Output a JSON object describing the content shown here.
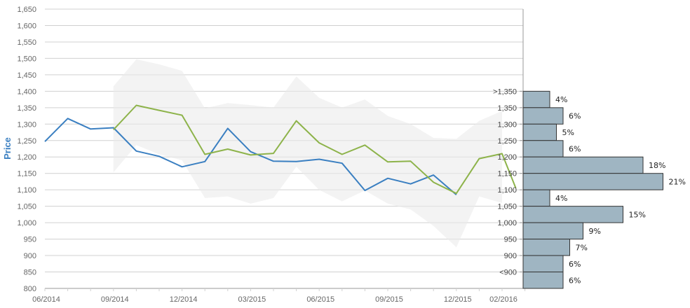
{
  "chart_data": {
    "type": "line",
    "ylabel": "Price",
    "ylim": [
      800,
      1650
    ],
    "y_ticks": [
      "800",
      "850",
      "900",
      "950",
      "1,000",
      "1,050",
      "1,100",
      "1,150",
      "1,200",
      "1,250",
      "1,300",
      "1,350",
      "1,400",
      "1,450",
      "1,500",
      "1,550",
      "1,600",
      "1,650"
    ],
    "y_tick_values": [
      800,
      850,
      900,
      950,
      1000,
      1050,
      1100,
      1150,
      1200,
      1250,
      1300,
      1350,
      1400,
      1450,
      1500,
      1550,
      1600,
      1650
    ],
    "x_ticks": [
      "06/2014",
      "09/2014",
      "12/2014",
      "03/2015",
      "06/2015",
      "09/2015",
      "12/2015",
      "02/2016"
    ],
    "x_tick_months": [
      0,
      3,
      6,
      9,
      12,
      15,
      18,
      20
    ],
    "grid": true,
    "colors": {
      "actual": "#3a7fc1",
      "forecast": "#8db34a",
      "range": "#ebebeb",
      "histogram": "#9fb5c2",
      "histogram_border": "#333333",
      "grid": "#d0d0d0",
      "axis": "#999999"
    },
    "series": [
      {
        "key": "actual",
        "x": [
          0,
          1,
          2,
          3,
          4,
          5,
          6,
          7,
          8,
          9,
          10,
          11,
          12,
          13,
          14,
          15,
          16,
          17,
          18
        ],
        "values": [
          1247,
          1317,
          1285,
          1289,
          1218,
          1202,
          1170,
          1186,
          1287,
          1216,
          1187,
          1186,
          1193,
          1181,
          1098,
          1135,
          1118,
          1145,
          1085
        ]
      },
      {
        "key": "forecast",
        "x": [
          3,
          4,
          5,
          6,
          7,
          8,
          9,
          10,
          11,
          12,
          13,
          14,
          15,
          16,
          17,
          18,
          19,
          20,
          20.6
        ],
        "values": [
          1283,
          1357,
          1342,
          1327,
          1208,
          1224,
          1206,
          1211,
          1310,
          1243,
          1208,
          1236,
          1185,
          1187,
          1123,
          1089,
          1195,
          1210,
          1105
        ]
      }
    ],
    "range_band": {
      "x": [
        3,
        4,
        5,
        6,
        7,
        8,
        9,
        10,
        11,
        12,
        13,
        14,
        15,
        16,
        17,
        18,
        19,
        20
      ],
      "upper": [
        1415,
        1497,
        1482,
        1462,
        1348,
        1364,
        1358,
        1350,
        1445,
        1380,
        1350,
        1375,
        1325,
        1300,
        1258,
        1255,
        1310,
        1340
      ],
      "lower": [
        1153,
        1236,
        1208,
        1190,
        1075,
        1080,
        1058,
        1075,
        1170,
        1100,
        1065,
        1098,
        1058,
        1040,
        990,
        925,
        1080,
        1060
      ]
    },
    "histogram": {
      "bins": [
        ">1,350",
        "1,350",
        "1,300",
        "1,250",
        "1,200",
        "1,150",
        "1,100",
        "1,050",
        "1,000",
        "950",
        "900",
        "<900"
      ],
      "percent_labels": [
        "4%",
        "6%",
        "5%",
        "6%",
        "18%",
        "21%",
        "4%",
        "15%",
        "9%",
        "7%",
        "6%",
        "6%"
      ],
      "percent_values": [
        4,
        6,
        5,
        6,
        18,
        21,
        4,
        15,
        9,
        7,
        6,
        6
      ]
    }
  }
}
